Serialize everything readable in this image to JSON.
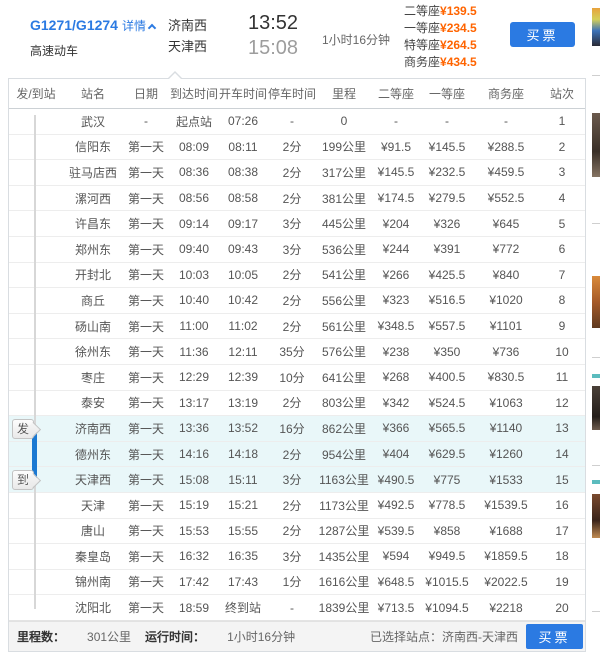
{
  "colors": {
    "accent_blue": "#2b7ae2",
    "price_orange": "#ff6400",
    "highlight_row_bg": "#e9f7f9",
    "track_blue": "#1b79d2"
  },
  "header": {
    "train_no": "G1271/G1274",
    "details_label": "详情",
    "train_type": "高速动车",
    "from_station": "济南西",
    "to_station": "天津西",
    "depart_time": "13:52",
    "arrive_time": "15:08",
    "duration": "1小时16分钟",
    "prices": [
      {
        "label": "二等座",
        "value": "¥139.5"
      },
      {
        "label": "一等座",
        "value": "¥234.5"
      },
      {
        "label": "特等座",
        "value": "¥264.5"
      },
      {
        "label": "商务座",
        "value": "¥434.5"
      }
    ],
    "buy_button": "买票"
  },
  "table": {
    "columns": [
      "发/到站",
      "站名",
      "日期",
      "到达时间",
      "开车时间",
      "停车时间",
      "里程",
      "二等座",
      "一等座",
      "商务座",
      "站次"
    ],
    "rows": [
      [
        "武汉",
        "-",
        "起点站",
        "07:26",
        "-",
        "0",
        "-",
        "-",
        "-",
        "1"
      ],
      [
        "信阳东",
        "第一天",
        "08:09",
        "08:11",
        "2分",
        "199公里",
        "¥91.5",
        "¥145.5",
        "¥288.5",
        "2"
      ],
      [
        "驻马店西",
        "第一天",
        "08:36",
        "08:38",
        "2分",
        "317公里",
        "¥145.5",
        "¥232.5",
        "¥459.5",
        "3"
      ],
      [
        "漯河西",
        "第一天",
        "08:56",
        "08:58",
        "2分",
        "381公里",
        "¥174.5",
        "¥279.5",
        "¥552.5",
        "4"
      ],
      [
        "许昌东",
        "第一天",
        "09:14",
        "09:17",
        "3分",
        "445公里",
        "¥204",
        "¥326",
        "¥645",
        "5"
      ],
      [
        "郑州东",
        "第一天",
        "09:40",
        "09:43",
        "3分",
        "536公里",
        "¥244",
        "¥391",
        "¥772",
        "6"
      ],
      [
        "开封北",
        "第一天",
        "10:03",
        "10:05",
        "2分",
        "541公里",
        "¥266",
        "¥425.5",
        "¥840",
        "7"
      ],
      [
        "商丘",
        "第一天",
        "10:40",
        "10:42",
        "2分",
        "556公里",
        "¥323",
        "¥516.5",
        "¥1020",
        "8"
      ],
      [
        "砀山南",
        "第一天",
        "11:00",
        "11:02",
        "2分",
        "561公里",
        "¥348.5",
        "¥557.5",
        "¥1101",
        "9"
      ],
      [
        "徐州东",
        "第一天",
        "11:36",
        "12:11",
        "35分",
        "576公里",
        "¥238",
        "¥350",
        "¥736",
        "10"
      ],
      [
        "枣庄",
        "第一天",
        "12:29",
        "12:39",
        "10分",
        "641公里",
        "¥268",
        "¥400.5",
        "¥830.5",
        "11"
      ],
      [
        "泰安",
        "第一天",
        "13:17",
        "13:19",
        "2分",
        "803公里",
        "¥342",
        "¥524.5",
        "¥1063",
        "12"
      ],
      [
        "济南西",
        "第一天",
        "13:36",
        "13:52",
        "16分",
        "862公里",
        "¥366",
        "¥565.5",
        "¥1140",
        "13"
      ],
      [
        "德州东",
        "第一天",
        "14:16",
        "14:18",
        "2分",
        "954公里",
        "¥404",
        "¥629.5",
        "¥1260",
        "14"
      ],
      [
        "天津西",
        "第一天",
        "15:08",
        "15:11",
        "3分",
        "1163公里",
        "¥490.5",
        "¥775",
        "¥1533",
        "15"
      ],
      [
        "天津",
        "第一天",
        "15:19",
        "15:21",
        "2分",
        "1173公里",
        "¥492.5",
        "¥778.5",
        "¥1539.5",
        "16"
      ],
      [
        "唐山",
        "第一天",
        "15:53",
        "15:55",
        "2分",
        "1287公里",
        "¥539.5",
        "¥858",
        "¥1688",
        "17"
      ],
      [
        "秦皇岛",
        "第一天",
        "16:32",
        "16:35",
        "3分",
        "1435公里",
        "¥594",
        "¥949.5",
        "¥1859.5",
        "18"
      ],
      [
        "锦州南",
        "第一天",
        "17:42",
        "17:43",
        "1分",
        "1616公里",
        "¥648.5",
        "¥1015.5",
        "¥2022.5",
        "19"
      ],
      [
        "沈阳北",
        "第一天",
        "18:59",
        "终到站",
        "-",
        "1839公里",
        "¥713.5",
        "¥1094.5",
        "¥2218",
        "20"
      ]
    ],
    "highlight_rows": [
      13,
      14,
      15
    ],
    "depart_badge": {
      "label": "发",
      "row": 13
    },
    "arrive_badge": {
      "label": "到",
      "row": 15
    }
  },
  "footer": {
    "mileage_label": "里程数：",
    "mileage_value": "301公里",
    "runtime_label": "运行时间：",
    "runtime_value": "1小时16分钟",
    "selected_label": "已选择站点：济南西-天津西",
    "buy_button": "买票"
  }
}
